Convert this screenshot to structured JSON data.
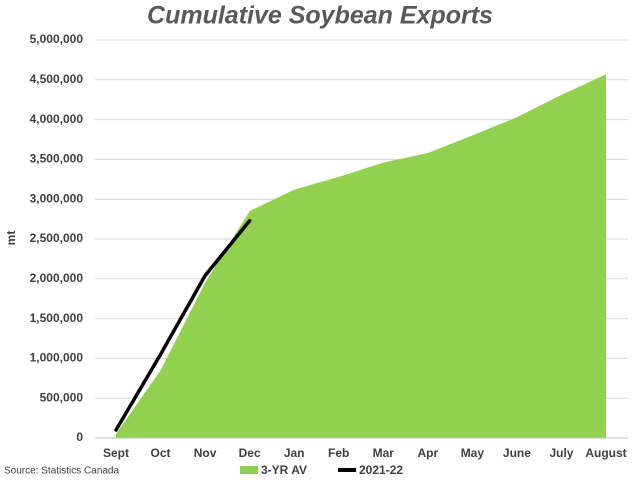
{
  "chart_data": {
    "type": "area-line",
    "title": "Cumulative Soybean Exports",
    "y_label": "mt",
    "source": "Source: Statistics Canada",
    "categories": [
      "Sept",
      "Oct",
      "Nov",
      "Dec",
      "Jan",
      "Feb",
      "Mar",
      "Apr",
      "May",
      "June",
      "July",
      "August"
    ],
    "series": [
      {
        "name": "3-YR AV",
        "color": "#92d050",
        "values": [
          50000,
          850000,
          1950000,
          2850000,
          3120000,
          3280000,
          3460000,
          3580000,
          3800000,
          4030000,
          4310000,
          4570000
        ]
      },
      {
        "name": "2021-22",
        "color": "#000000",
        "values": [
          100000,
          1050000,
          2040000,
          2730000,
          null,
          null,
          null,
          null,
          null,
          null,
          null,
          null
        ]
      }
    ],
    "ylim": [
      0,
      5000000
    ],
    "yticks": [
      0,
      {
        "value": 500000,
        "label": "500,000"
      },
      {
        "value": 1000000,
        "label": "1,000,000"
      },
      {
        "value": 1500000,
        "label": "1,500,000"
      },
      {
        "value": 2000000,
        "label": "2,000,000"
      },
      {
        "value": 2500000,
        "label": "2,500,000"
      },
      {
        "value": 3000000,
        "label": "3,000,000"
      },
      {
        "value": 3500000,
        "label": "3,500,000"
      },
      {
        "value": 4000000,
        "label": "4,000,000"
      },
      {
        "value": 4500000,
        "label": "4,500,000"
      },
      {
        "value": 5000000,
        "label": "5,000,000"
      }
    ],
    "grid": true,
    "legend": "bottom"
  }
}
